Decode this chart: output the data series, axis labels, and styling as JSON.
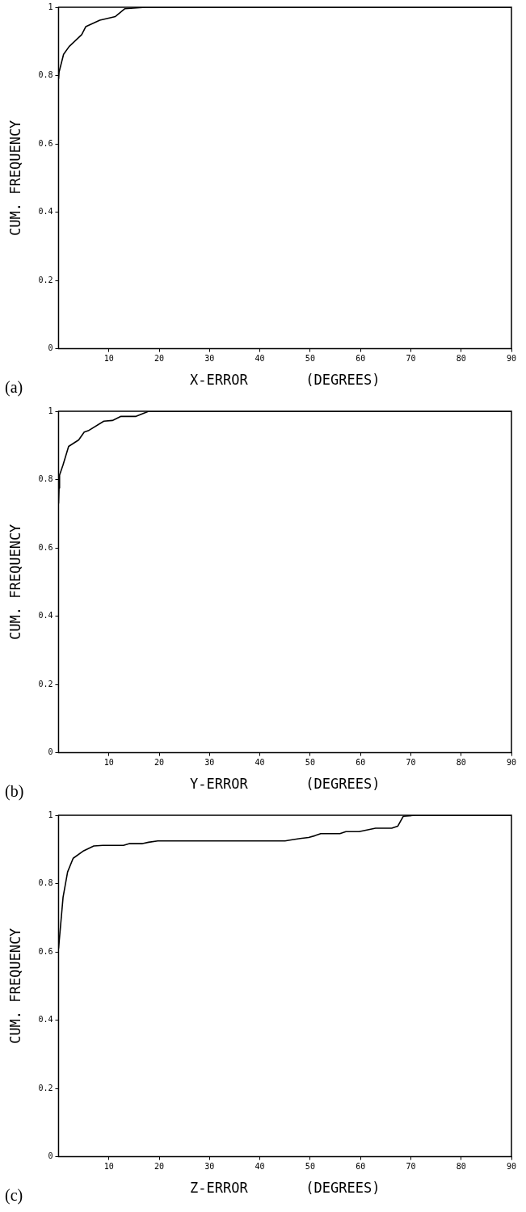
{
  "chart_data": [
    {
      "type": "line",
      "xlabel": "X-ERROR       (DEGREES)",
      "ylabel": "CUM. FREQUENCY",
      "annotations": [
        "(a)"
      ],
      "color": "#000000",
      "x": [
        0,
        0.1,
        1,
        2.1,
        4.6,
        5.4,
        8.2,
        11.3,
        13.2,
        17.3,
        90
      ],
      "values": [
        0.79,
        0.81,
        0.862,
        0.885,
        0.92,
        0.943,
        0.962,
        0.973,
        0.996,
        1,
        1
      ],
      "xlim": [
        0,
        90
      ],
      "ylim": [
        0,
        1
      ],
      "xticks": [
        10,
        20,
        30,
        40,
        50,
        60,
        70,
        80,
        90
      ],
      "yticks": [
        0,
        0.2,
        0.4,
        0.6,
        0.8,
        1
      ]
    },
    {
      "type": "line",
      "xlabel": "Y-ERROR       (DEGREES)",
      "ylabel": "CUM. FREQUENCY",
      "annotations": [
        "(b)"
      ],
      "color": "#000000",
      "x": [
        0,
        0.1,
        0.2,
        0.9,
        2,
        4,
        5.1,
        5.9,
        9,
        10.7,
        12.4,
        15.4,
        17.9,
        90
      ],
      "values": [
        0.73,
        0.775,
        0.813,
        0.843,
        0.897,
        0.916,
        0.939,
        0.943,
        0.971,
        0.973,
        0.985,
        0.985,
        1,
        1
      ],
      "xlim": [
        0,
        90
      ],
      "ylim": [
        0,
        1
      ],
      "xticks": [
        10,
        20,
        30,
        40,
        50,
        60,
        70,
        80,
        90
      ],
      "yticks": [
        0,
        0.2,
        0.4,
        0.6,
        0.8,
        1
      ]
    },
    {
      "type": "line",
      "xlabel": "Z-ERROR       (DEGREES)",
      "ylabel": "CUM. FREQUENCY",
      "annotations": [
        "(c)"
      ],
      "color": "#000000",
      "x": [
        0,
        0.9,
        1.8,
        2.9,
        5,
        7,
        8.8,
        12.9,
        14.1,
        16.7,
        17.9,
        19.7,
        45,
        46.2,
        48,
        49.7,
        50.9,
        52.1,
        55.9,
        57.1,
        59.7,
        63,
        66.2,
        67.4,
        68.5,
        70.9,
        90
      ],
      "values": [
        0.61,
        0.76,
        0.834,
        0.874,
        0.896,
        0.91,
        0.912,
        0.912,
        0.917,
        0.917,
        0.921,
        0.925,
        0.925,
        0.928,
        0.932,
        0.935,
        0.94,
        0.946,
        0.946,
        0.952,
        0.952,
        0.962,
        0.962,
        0.968,
        0.997,
        1,
        1
      ],
      "xlim": [
        0,
        90
      ],
      "ylim": [
        0,
        1
      ],
      "xticks": [
        10,
        20,
        30,
        40,
        50,
        60,
        70,
        80,
        90
      ],
      "yticks": [
        0,
        0.2,
        0.4,
        0.6,
        0.8,
        1
      ]
    }
  ]
}
